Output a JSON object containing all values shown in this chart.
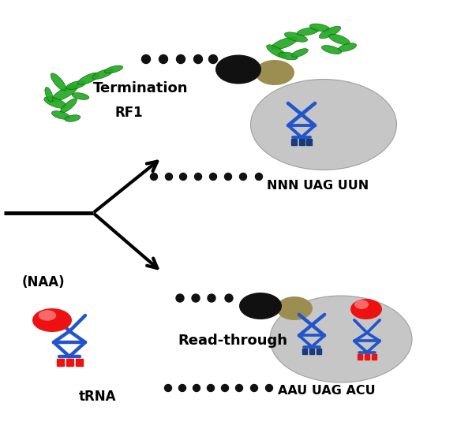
{
  "bg_color": "#ffffff",
  "blue_color": "#2255cc",
  "dark_blue": "#1a3a7a",
  "red_color": "#ee1111",
  "black_oval_color": "#111111",
  "tan_oval_color": "#9b8e50",
  "gray_ellipse_color": "#c0c0c0",
  "green_color": "#22aa22",
  "dot_color": "#111111",
  "text_termination": "Termination",
  "text_rf1": "RF1",
  "text_readthrough": "Read-through",
  "text_trna": "tRNA",
  "text_naa": "(NAA)",
  "text_nnn_uag_uun": "NNN UAG UUN",
  "text_aau_uag_acu": "AAU UAG ACU",
  "figw": 5.79,
  "figh": 5.44,
  "dpi": 100
}
